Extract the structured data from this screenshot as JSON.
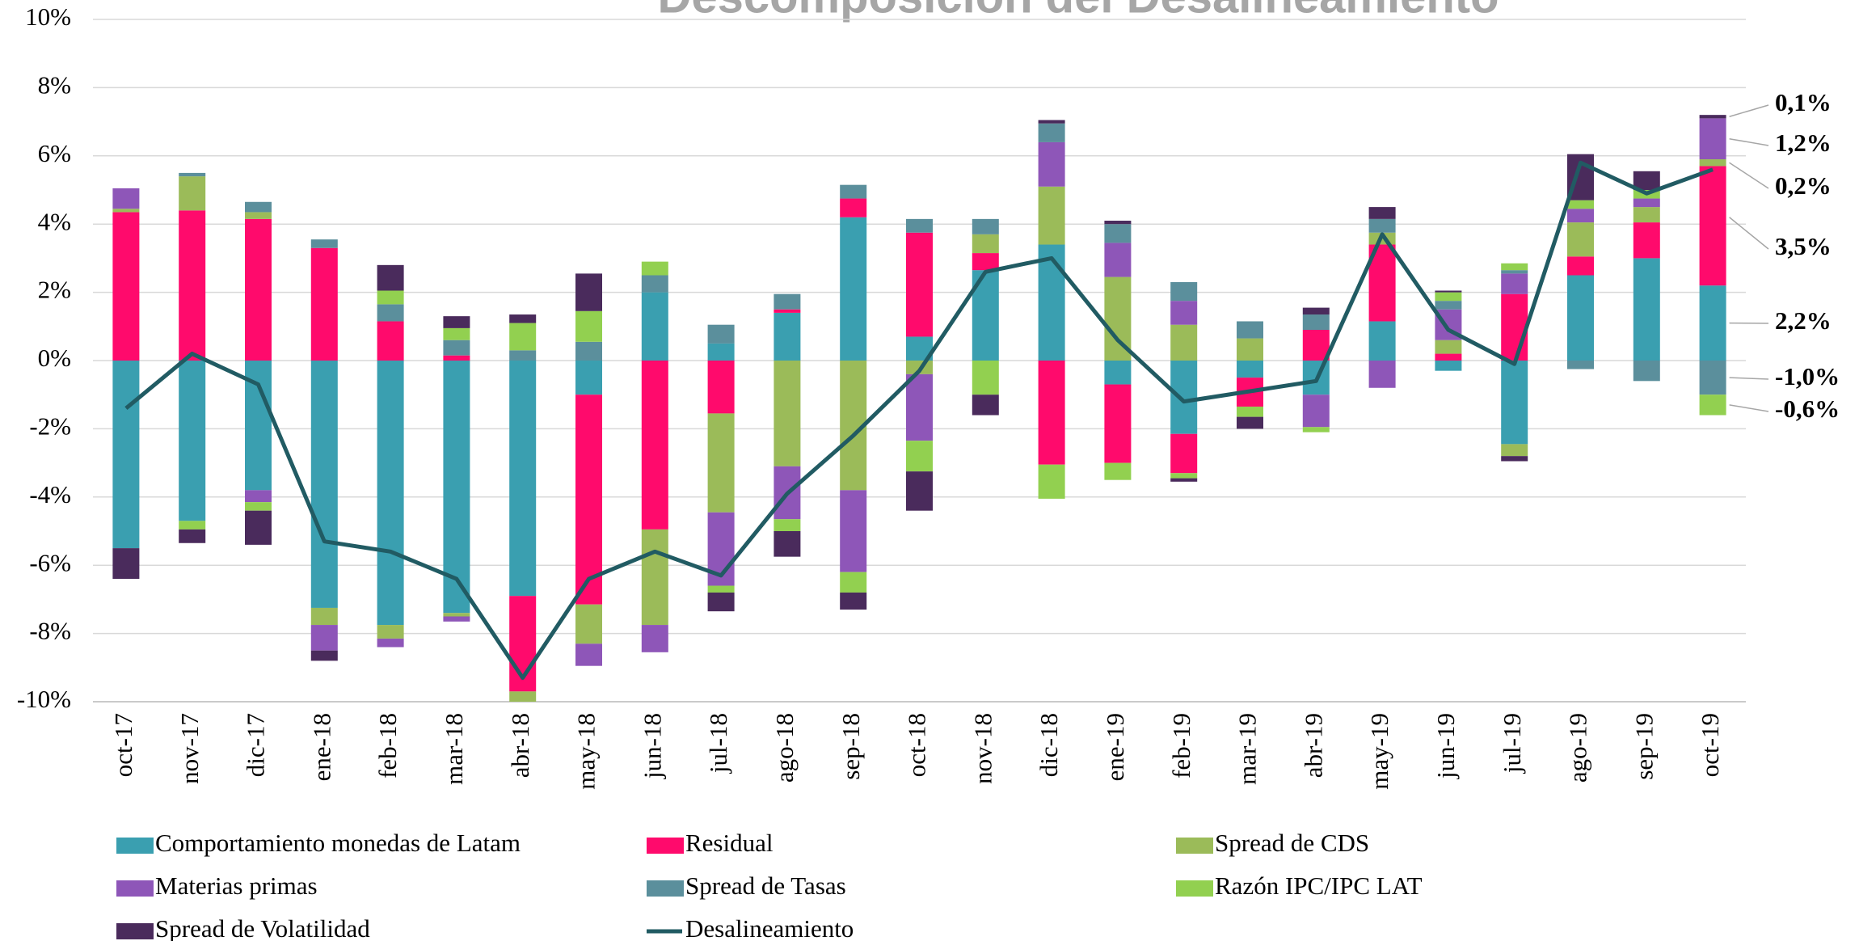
{
  "chart_data": {
    "type": "bar",
    "stacked": true,
    "title": "Descomposición del Desalineamiento",
    "categories": [
      "oct-17",
      "nov-17",
      "dic-17",
      "ene-18",
      "feb-18",
      "mar-18",
      "abr-18",
      "may-18",
      "jun-18",
      "jul-18",
      "ago-18",
      "sep-18",
      "oct-18",
      "nov-18",
      "dic-18",
      "ene-19",
      "feb-19",
      "mar-19",
      "abr-19",
      "may-19",
      "jun-19",
      "jul-19",
      "ago-19",
      "sep-19",
      "oct-19"
    ],
    "series": [
      {
        "name": "Comportamiento monedas de Latam",
        "color": "#3a9fb0",
        "values": [
          -5.5,
          -4.7,
          -3.8,
          -7.25,
          -7.75,
          -7.4,
          -6.9,
          -1.0,
          2.0,
          0.5,
          1.4,
          4.2,
          0.7,
          2.65,
          3.4,
          -0.7,
          -2.15,
          -0.5,
          -1.0,
          1.15,
          -0.3,
          -2.45,
          2.5,
          3.0,
          2.2
        ]
      },
      {
        "name": "Residual",
        "color": "#ff0a6c",
        "values": [
          4.35,
          4.4,
          4.15,
          3.3,
          1.15,
          0.15,
          -2.8,
          -6.15,
          -4.95,
          -1.55,
          0.1,
          0.55,
          3.05,
          0.5,
          -3.05,
          -2.3,
          -1.15,
          -0.85,
          0.9,
          2.25,
          0.2,
          1.95,
          0.55,
          1.05,
          3.5
        ]
      },
      {
        "name": "Spread de CDS",
        "color": "#9bbb59",
        "values": [
          0.1,
          1.0,
          0.2,
          -0.5,
          -0.4,
          -0.1,
          -0.3,
          -1.15,
          -2.8,
          -2.9,
          -3.1,
          -3.8,
          -0.4,
          0.55,
          1.7,
          2.45,
          1.05,
          0.65,
          0,
          0.35,
          0.4,
          -0.35,
          1.0,
          0.45,
          0.2
        ]
      },
      {
        "name": "Materias primas",
        "color": "#8e56b8",
        "values": [
          0.6,
          0,
          -0.35,
          -0.75,
          -0.25,
          -0.15,
          0,
          -0.65,
          -0.8,
          -2.15,
          -1.55,
          -2.4,
          -1.95,
          0,
          1.3,
          1.0,
          0.7,
          0,
          -0.95,
          -0.8,
          0.9,
          0.6,
          0.4,
          0.25,
          1.2
        ]
      },
      {
        "name": "Spread de Tasas",
        "color": "#5b8f9c",
        "values": [
          0,
          0.1,
          0.3,
          0.25,
          0.5,
          0.45,
          0.3,
          0.55,
          0.5,
          0.55,
          0.45,
          0.4,
          0.4,
          0.45,
          0.55,
          0.55,
          0.55,
          0.5,
          0.45,
          0.4,
          0.25,
          0.1,
          -0.25,
          -0.6,
          -1.0
        ]
      },
      {
        "name": "Razón  IPC/IPC LAT",
        "color": "#92d050",
        "values": [
          0,
          -0.25,
          -0.25,
          0,
          0.4,
          0.35,
          0.8,
          0.9,
          0.4,
          -0.2,
          -0.35,
          -0.6,
          -0.9,
          -1.0,
          -1.0,
          -0.5,
          -0.15,
          -0.3,
          -0.15,
          0,
          0.25,
          0.2,
          0.25,
          0.25,
          -0.6
        ]
      },
      {
        "name": "Spread de Volatilidad",
        "color": "#4a2b5c",
        "values": [
          -0.9,
          -0.4,
          -1.0,
          -0.3,
          0.75,
          0.35,
          0.25,
          1.1,
          0,
          -0.55,
          -0.75,
          -0.5,
          -1.15,
          -0.6,
          0.1,
          0.1,
          -0.1,
          -0.35,
          0.2,
          0.35,
          0.05,
          -0.15,
          1.35,
          0.55,
          0.1
        ]
      },
      {
        "name": "Desalineamiento",
        "color": "#215b63",
        "type": "line",
        "values": [
          -1.4,
          0.2,
          -0.7,
          -5.3,
          -5.6,
          -6.4,
          -9.3,
          -6.4,
          -5.6,
          -6.3,
          -3.9,
          -2.2,
          -0.3,
          2.6,
          3.0,
          0.6,
          -1.2,
          -0.9,
          -0.6,
          3.7,
          0.9,
          -0.1,
          5.8,
          4.9,
          5.6
        ]
      }
    ],
    "ylim": [
      -10,
      10
    ],
    "yticks": [
      {
        "value": -10,
        "label": "-10%"
      },
      {
        "value": -8,
        "label": "-8%"
      },
      {
        "value": -6,
        "label": "-6%"
      },
      {
        "value": -4,
        "label": "-4%"
      },
      {
        "value": -2,
        "label": "-2%"
      },
      {
        "value": 0,
        "label": "0%"
      },
      {
        "value": 2,
        "label": "2%"
      },
      {
        "value": 4,
        "label": "4%"
      },
      {
        "value": 6,
        "label": "6%"
      },
      {
        "value": 8,
        "label": "8%"
      },
      {
        "value": 10,
        "label": "10%"
      }
    ],
    "grid": true,
    "legend": "bottom",
    "annotations": [
      {
        "text": "0,1%",
        "color": "#3d2a5a"
      },
      {
        "text": "1,2%",
        "color": "#7b3fa0"
      },
      {
        "text": "0,2%",
        "color": "#bfbfbf"
      },
      {
        "text": "3,5%",
        "color": "#c0185a"
      },
      {
        "text": "2,2%",
        "color": "#2e7d8c"
      },
      {
        "text": "-1,0%",
        "color": "#ffc000"
      },
      {
        "text": "-0,6%",
        "color": "#1f2f6b"
      }
    ]
  }
}
